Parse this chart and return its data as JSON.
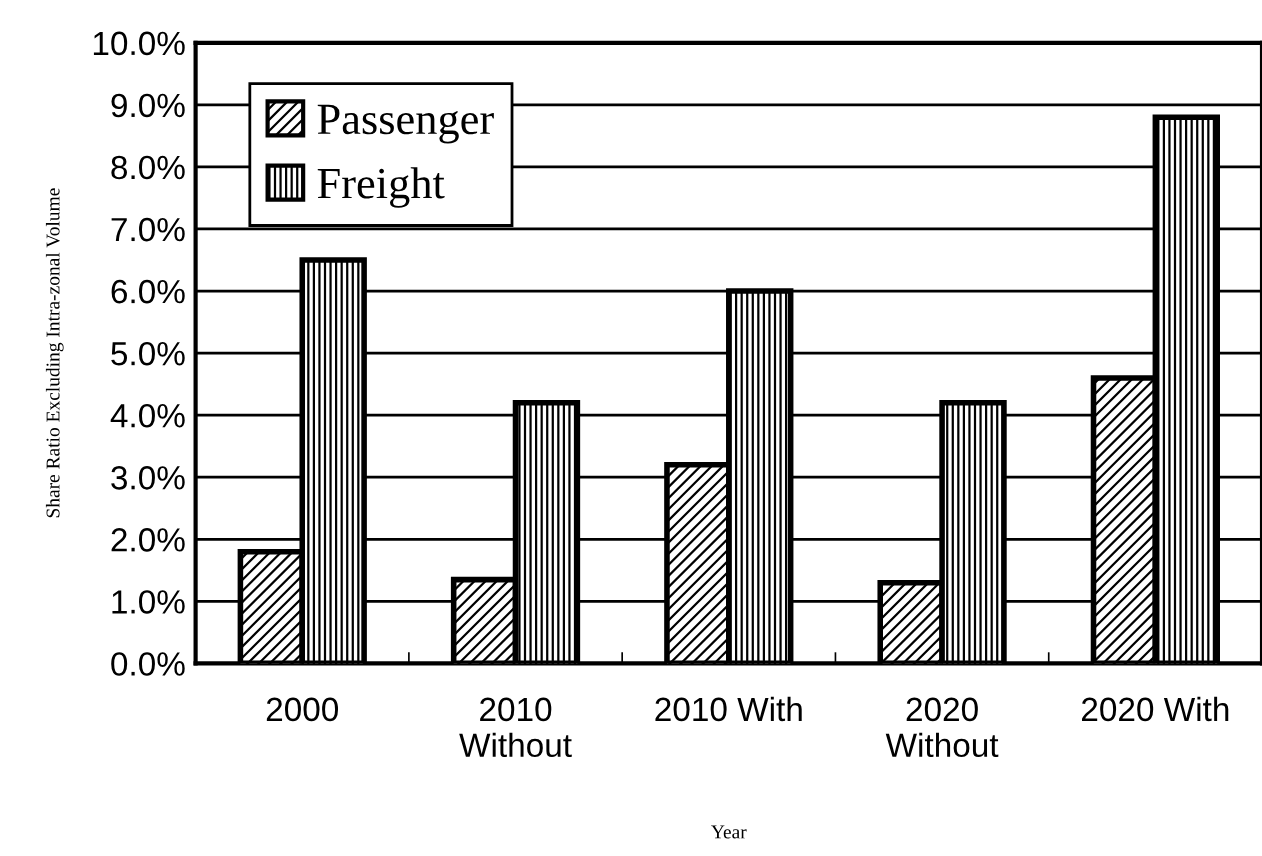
{
  "chart_data": {
    "type": "bar",
    "xlabel": "Year",
    "ylabel": "Share Ratio Excluding Intra-zonal Volume",
    "categories": [
      "2000",
      "2010\nWithout",
      "2010 With",
      "2020\nWithout",
      "2020 With"
    ],
    "series": [
      {
        "name": "Passenger",
        "color": "#000000",
        "values": [
          1.8,
          1.35,
          3.2,
          1.3,
          4.6
        ]
      },
      {
        "name": "Freight",
        "color": "#000000",
        "values": [
          6.5,
          4.2,
          6.0,
          4.2,
          8.8
        ]
      }
    ],
    "ylim": [
      0,
      10
    ],
    "yticks": [
      {
        "value": 0,
        "label": "0.0%"
      },
      {
        "value": 1,
        "label": "1.0%"
      },
      {
        "value": 2,
        "label": "2.0%"
      },
      {
        "value": 3,
        "label": "3.0%"
      },
      {
        "value": 4,
        "label": "4.0%"
      },
      {
        "value": 5,
        "label": "5.0%"
      },
      {
        "value": 6,
        "label": "6.0%"
      },
      {
        "value": 7,
        "label": "7.0%"
      },
      {
        "value": 8,
        "label": "8.0%"
      },
      {
        "value": 9,
        "label": "9.0%"
      },
      {
        "value": 10,
        "label": "10.0%"
      }
    ],
    "grid": "y",
    "legend": "top left"
  }
}
